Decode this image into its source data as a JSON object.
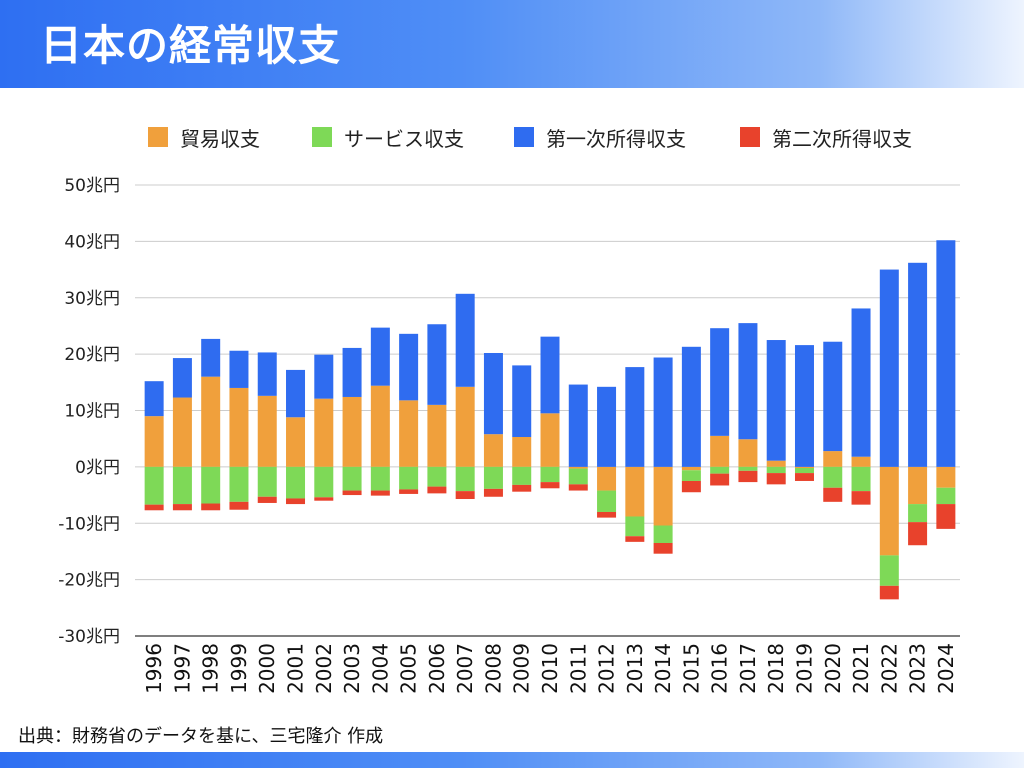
{
  "page": {
    "title": "日本の経常収支",
    "source": "出典：財務省のデータを基に、三宅隆介 作成"
  },
  "colors": {
    "trade": "#f0a03c",
    "services": "#7ed957",
    "primary_income": "#2f6cf0",
    "secondary_income": "#e8422c",
    "header_start": "#2e6ff2",
    "header_end": "#eef4fe"
  },
  "chart_data": {
    "type": "bar",
    "stacked": true,
    "categories": [
      "1996",
      "1997",
      "1998",
      "1999",
      "2000",
      "2001",
      "2002",
      "2003",
      "2004",
      "2005",
      "2006",
      "2007",
      "2008",
      "2009",
      "2010",
      "2011",
      "2012",
      "2013",
      "2014",
      "2015",
      "2016",
      "2017",
      "2018",
      "2019",
      "2020",
      "2021",
      "2022",
      "2023",
      "2024"
    ],
    "ylim": [
      -30,
      50
    ],
    "yticks": [
      50,
      40,
      30,
      20,
      10,
      0,
      -10,
      -20,
      -30
    ],
    "ytick_labels": [
      "50兆円",
      "40兆円",
      "30兆円",
      "20兆円",
      "10兆円",
      "0兆円",
      "-10兆円",
      "-20兆円",
      "-30兆円"
    ],
    "legend_position": "top",
    "grid": true,
    "series": [
      {
        "name": "貿易収支",
        "color": "#f0a03c",
        "values": [
          9.0,
          12.3,
          16.0,
          14.0,
          12.6,
          8.8,
          12.1,
          12.4,
          14.4,
          11.8,
          11.0,
          14.2,
          5.8,
          5.3,
          9.5,
          -0.3,
          -4.2,
          -8.8,
          -10.4,
          -0.6,
          5.5,
          4.9,
          1.1,
          -0.2,
          2.8,
          1.8,
          -15.7,
          -6.6,
          -3.7
        ]
      },
      {
        "name": "サービス収支",
        "color": "#7ed957",
        "values": [
          -6.7,
          -6.6,
          -6.5,
          -6.2,
          -5.3,
          -5.6,
          -5.4,
          -4.2,
          -4.2,
          -4.0,
          -3.5,
          -4.3,
          -3.9,
          -3.2,
          -2.7,
          -2.8,
          -3.8,
          -3.5,
          -3.1,
          -1.9,
          -1.2,
          -0.7,
          -1.1,
          -0.9,
          -3.7,
          -4.3,
          -5.4,
          -3.2,
          -2.9
        ]
      },
      {
        "name": "第一次所得収支",
        "color": "#2f6cf0",
        "values": [
          6.2,
          7.0,
          6.7,
          6.6,
          7.7,
          8.4,
          7.8,
          8.7,
          10.3,
          11.8,
          14.3,
          16.5,
          14.4,
          12.7,
          13.6,
          14.6,
          14.2,
          17.7,
          19.4,
          21.3,
          19.1,
          20.6,
          21.4,
          21.6,
          19.4,
          26.3,
          35.0,
          36.2,
          40.2
        ]
      },
      {
        "name": "第二次所得収支",
        "color": "#e8422c",
        "values": [
          -1.0,
          -1.1,
          -1.2,
          -1.4,
          -1.1,
          -1.0,
          -0.6,
          -0.8,
          -0.9,
          -0.8,
          -1.2,
          -1.4,
          -1.4,
          -1.2,
          -1.1,
          -1.1,
          -1.0,
          -1.0,
          -1.9,
          -2.0,
          -2.1,
          -2.0,
          -2.0,
          -1.4,
          -2.5,
          -2.4,
          -2.4,
          -4.1,
          -4.4
        ]
      }
    ]
  }
}
